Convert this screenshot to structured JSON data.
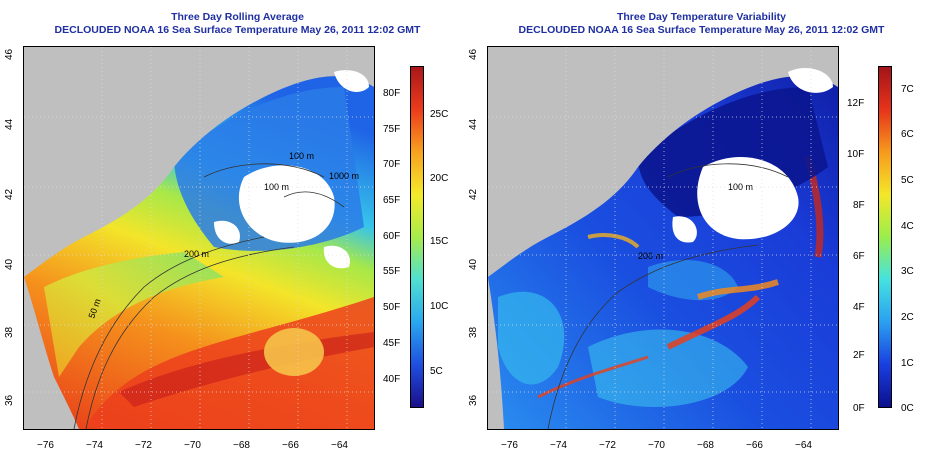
{
  "left_panel": {
    "title_line1": "Three Day Rolling Average",
    "title_line2": "DECLOUDED NOAA 16 Sea Surface Temperature May 26, 2011 12:02 GMT",
    "x_ticks": [
      "−76",
      "−74",
      "−72",
      "−70",
      "−68",
      "−66",
      "−64"
    ],
    "y_ticks": [
      "36",
      "38",
      "40",
      "42",
      "44",
      "46"
    ],
    "contour_labels": [
      "50 m",
      "200 m",
      "100 m",
      "100 m",
      "1000 m"
    ],
    "colorbar_fahrenheit": [
      "40F",
      "45F",
      "50F",
      "55F",
      "60F",
      "65F",
      "70F",
      "75F",
      "80F"
    ],
    "colorbar_celsius": [
      "5C",
      "10C",
      "15C",
      "20C",
      "25C"
    ],
    "colorbar_stops": [
      "#1a0f8a",
      "#1f4fe0",
      "#2aa7ee",
      "#4fe0d0",
      "#a8ec4a",
      "#f5ea2a",
      "#f7a11f",
      "#ec3b1c",
      "#a9171a"
    ]
  },
  "right_panel": {
    "title_line1": "Three Day Temperature Variability",
    "title_line2": "DECLOUDED NOAA 16 Sea Surface Temperature May 26, 2011 12:02 GMT",
    "x_ticks": [
      "−76",
      "−74",
      "−72",
      "−70",
      "−68",
      "−66",
      "−64"
    ],
    "y_ticks": [
      "36",
      "38",
      "40",
      "42",
      "44",
      "46"
    ],
    "contour_labels": [
      "200 m",
      "100 m"
    ],
    "colorbar_fahrenheit": [
      "0F",
      "2F",
      "4F",
      "6F",
      "8F",
      "10F",
      "12F"
    ],
    "colorbar_celsius": [
      "0C",
      "1C",
      "2C",
      "3C",
      "4C",
      "5C",
      "6C",
      "7C"
    ],
    "colorbar_stops": [
      "#0b0f8c",
      "#1a3fe0",
      "#2aa0f0",
      "#45e2e0",
      "#9aee4d",
      "#f4e72a",
      "#f69a1e",
      "#e6331b",
      "#a3141a"
    ]
  },
  "colors": {
    "land": "#bfbfbf",
    "clouds": "#ffffff",
    "title": "#1f2fa0"
  }
}
